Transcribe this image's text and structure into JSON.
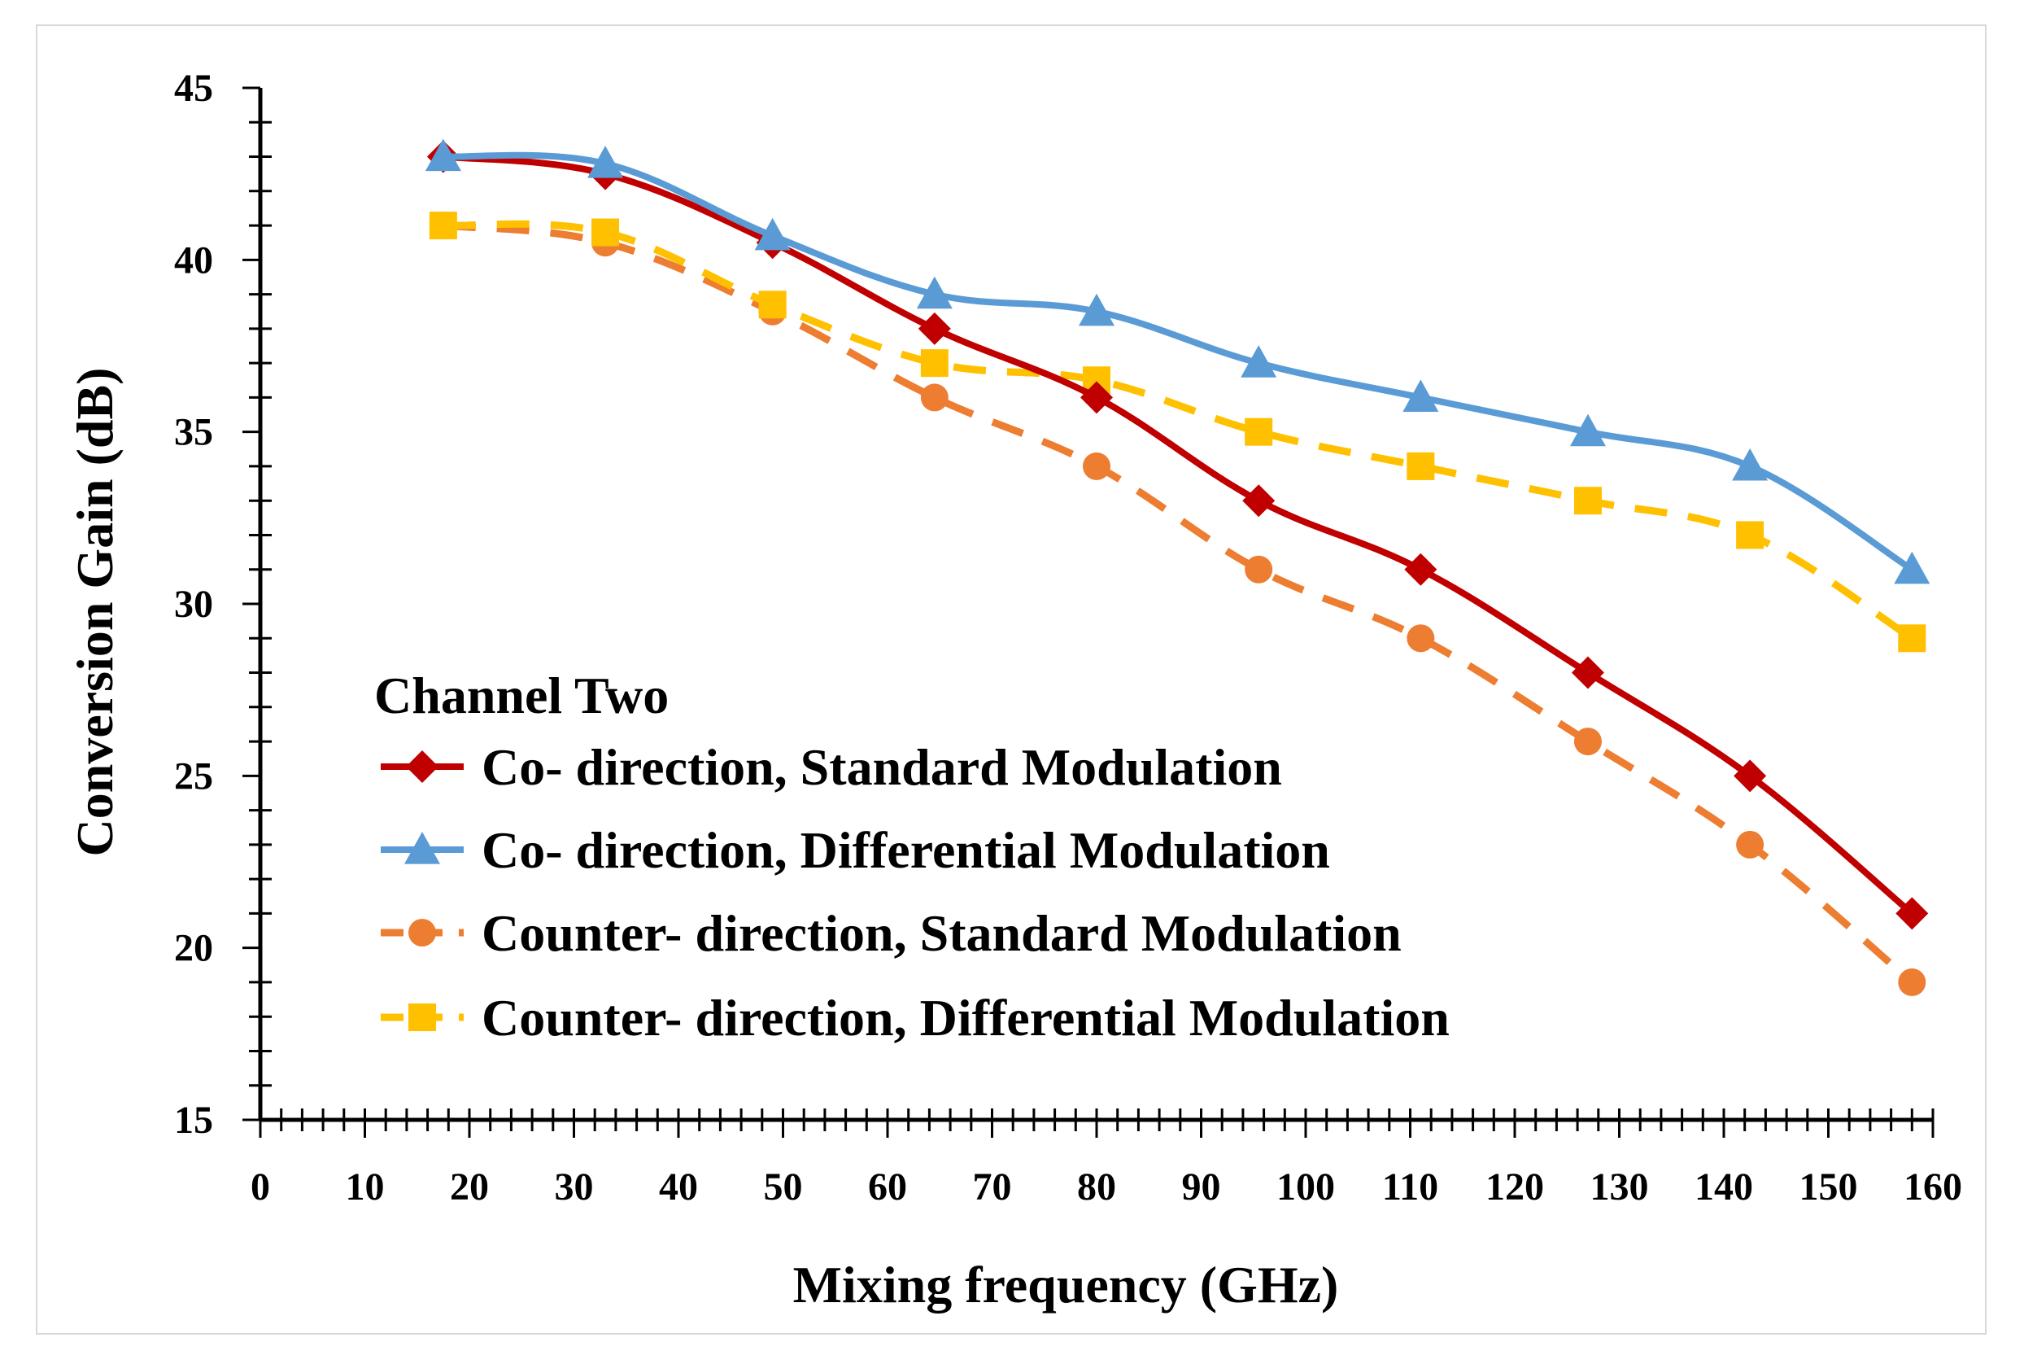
{
  "chart_data": {
    "type": "line",
    "title": "",
    "xlabel": "Mixing frequency (GHz)",
    "ylabel": "Conversion Gain (dB)",
    "xlim": [
      0,
      160
    ],
    "ylim": [
      15,
      45
    ],
    "x_ticks": [
      0,
      10,
      20,
      30,
      40,
      50,
      60,
      70,
      80,
      90,
      100,
      110,
      120,
      130,
      140,
      150,
      160
    ],
    "y_ticks": [
      15,
      20,
      25,
      30,
      35,
      40,
      45
    ],
    "grid": false,
    "legend_title": "Channel Two",
    "legend_position": "bottom-left",
    "x": [
      17.5,
      33,
      49,
      64.5,
      80,
      95.5,
      111,
      127,
      142.5,
      158
    ],
    "series": [
      {
        "name": "Co- direction, Standard Modulation",
        "color": "#c00000",
        "marker": "diamond",
        "dashed": false,
        "values": [
          43,
          42.5,
          40.5,
          38,
          36,
          33,
          31,
          28,
          25,
          21
        ]
      },
      {
        "name": "Co- direction, Differential Modulation",
        "color": "#5b9bd5",
        "marker": "triangle",
        "dashed": false,
        "values": [
          43,
          42.8,
          40.7,
          39,
          38.5,
          37,
          36,
          35,
          34,
          31
        ]
      },
      {
        "name": "Counter- direction, Standard Modulation",
        "color": "#ed7d31",
        "marker": "circle",
        "dashed": true,
        "values": [
          41,
          40.5,
          38.5,
          36,
          34,
          31,
          29,
          26,
          23,
          19
        ]
      },
      {
        "name": "Counter- direction, Differential Modulation",
        "color": "#ffc000",
        "marker": "square",
        "dashed": true,
        "values": [
          41,
          40.8,
          38.7,
          37,
          36.5,
          35,
          34,
          33,
          32,
          29
        ]
      }
    ]
  }
}
